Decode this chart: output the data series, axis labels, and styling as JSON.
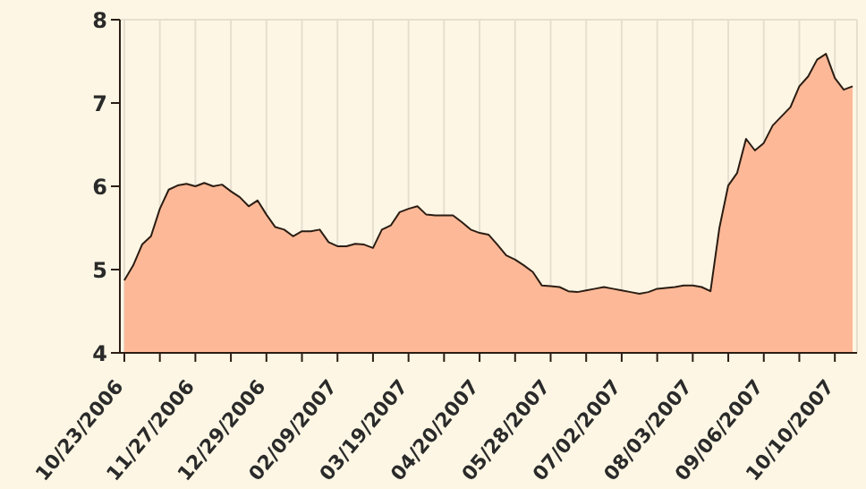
{
  "chart_data": {
    "type": "area",
    "categories": [
      "10/23/2006",
      null,
      null,
      null,
      null,
      null,
      null,
      null,
      "11/27/2006",
      null,
      null,
      null,
      null,
      null,
      null,
      null,
      "12/29/2006",
      null,
      null,
      null,
      null,
      null,
      null,
      null,
      "02/09/2007",
      null,
      null,
      null,
      null,
      null,
      null,
      null,
      "03/19/2007",
      null,
      null,
      null,
      null,
      null,
      null,
      null,
      "04/20/2007",
      null,
      null,
      null,
      null,
      null,
      null,
      null,
      "05/28/2007",
      null,
      null,
      null,
      null,
      null,
      null,
      null,
      "07/02/2007",
      null,
      null,
      null,
      null,
      null,
      null,
      null,
      "08/03/2007",
      null,
      null,
      null,
      null,
      null,
      null,
      null,
      "09/06/2007",
      null,
      null,
      null,
      null,
      null,
      null,
      null,
      "10/10/2007",
      null,
      null
    ],
    "series": [
      {
        "color": "#fdb997",
        "values": [
          4.87,
          5.05,
          5.3,
          5.4,
          5.73,
          5.96,
          6.01,
          6.03,
          6.0,
          6.04,
          6.0,
          6.02,
          5.94,
          5.87,
          5.76,
          5.83,
          5.66,
          5.51,
          5.48,
          5.4,
          5.46,
          5.46,
          5.48,
          5.33,
          5.28,
          5.28,
          5.31,
          5.3,
          5.26,
          5.48,
          5.53,
          5.69,
          5.73,
          5.76,
          5.66,
          5.65,
          5.65,
          5.65,
          5.57,
          5.48,
          5.44,
          5.42,
          5.3,
          5.17,
          5.12,
          5.05,
          4.97,
          4.81,
          4.8,
          4.79,
          4.74,
          4.73,
          4.75,
          4.77,
          4.79,
          4.77,
          4.75,
          4.73,
          4.71,
          4.73,
          4.77,
          4.78,
          4.79,
          4.81,
          4.81,
          4.79,
          4.74,
          5.5,
          6.01,
          6.16,
          6.57,
          6.43,
          6.52,
          6.73,
          6.84,
          6.95,
          7.2,
          7.32,
          7.52,
          7.59,
          7.3,
          7.16,
          7.2
        ]
      }
    ],
    "ylim": [
      4,
      8
    ],
    "yticks": [
      4,
      5,
      6,
      7,
      8
    ],
    "grid": true
  }
}
